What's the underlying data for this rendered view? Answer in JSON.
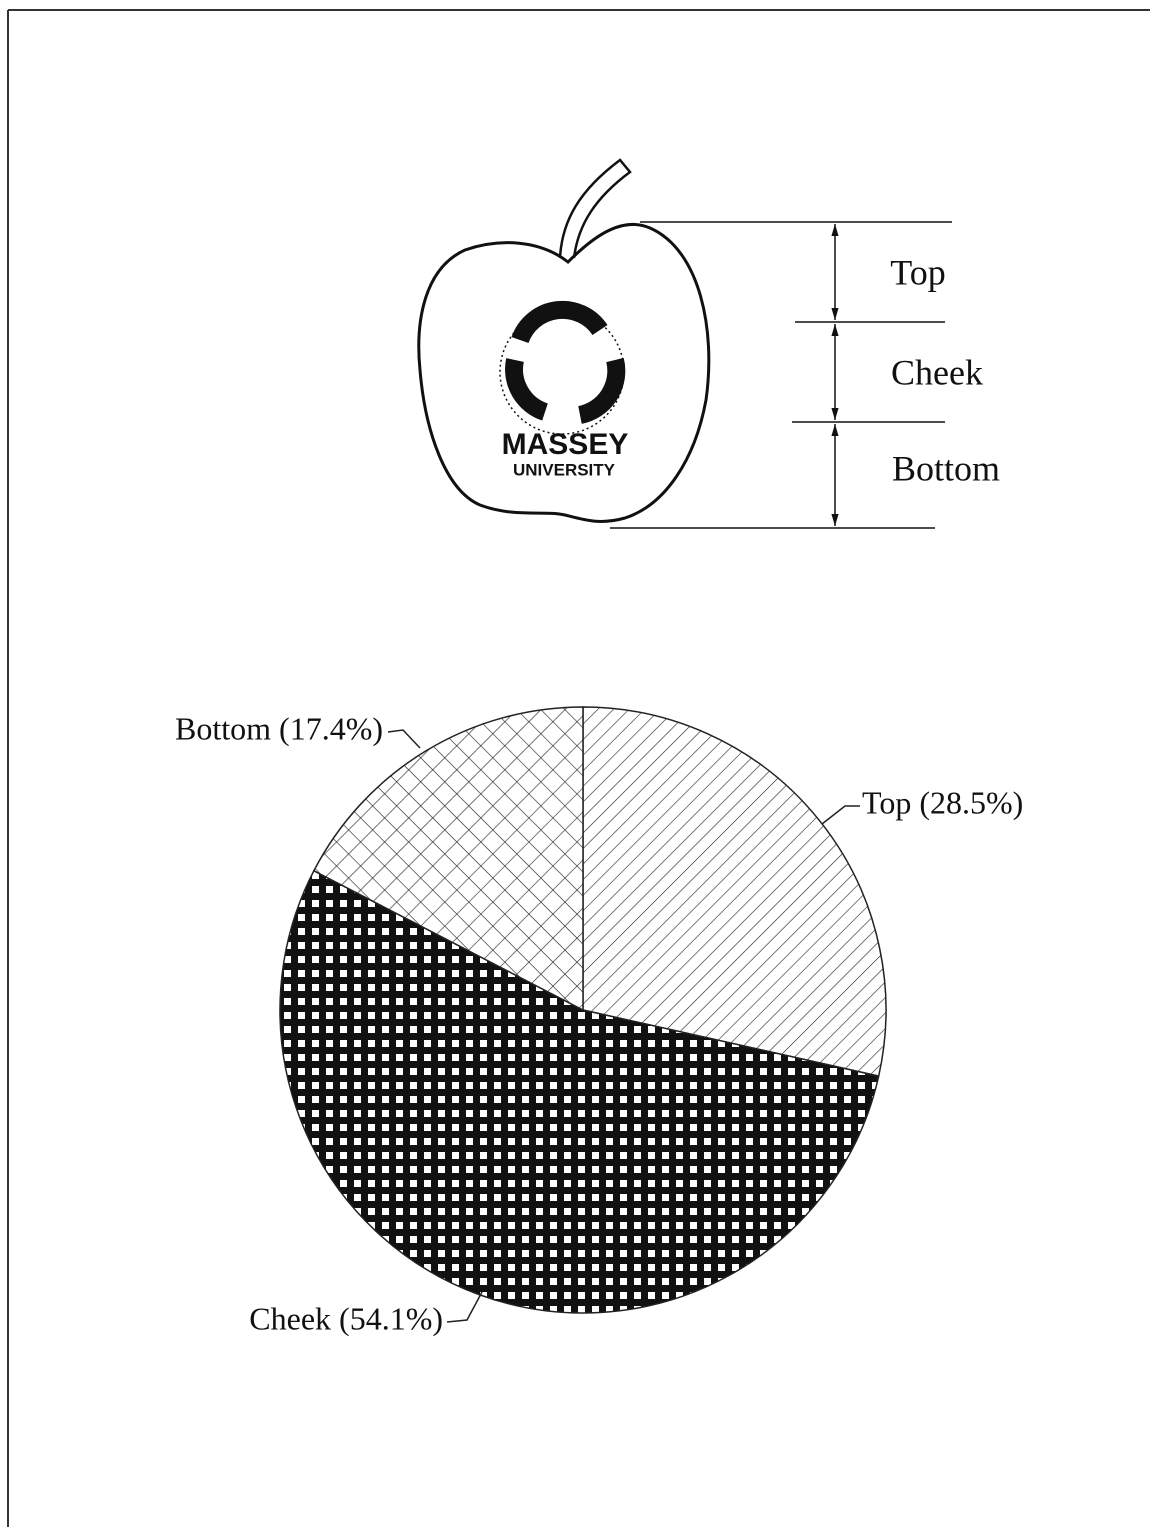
{
  "diagram": {
    "logo_text": [
      "MASSEY",
      "UNIVERSITY"
    ]
  },
  "chart_data": {
    "type": "pie",
    "categories": [
      "Top",
      "Cheek",
      "Bottom"
    ],
    "values": [
      28.5,
      54.1,
      17.4
    ],
    "value_labels": [
      "Top (28.5%)",
      "Cheek (54.1%)",
      "Bottom (17.4%)"
    ]
  }
}
